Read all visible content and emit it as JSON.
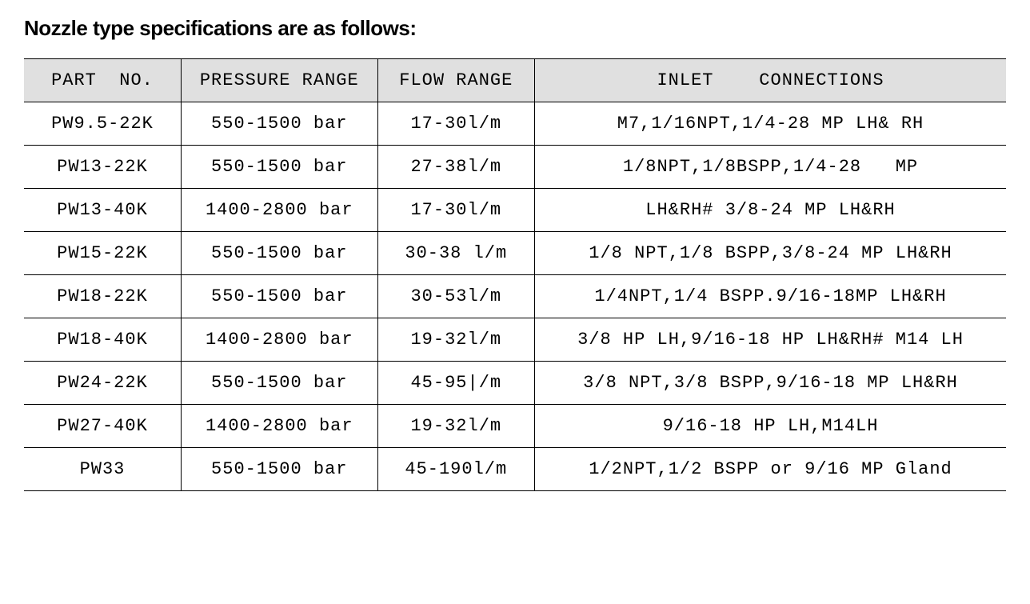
{
  "title": "Nozzle type specifications are as follows:",
  "table": {
    "columns": [
      {
        "key": "part_no",
        "label": "PART  NO.",
        "width": "16%"
      },
      {
        "key": "pressure_range",
        "label": "PRESSURE RANGE",
        "width": "20%"
      },
      {
        "key": "flow_range",
        "label": "FLOW RANGE",
        "width": "16%"
      },
      {
        "key": "inlet_connections",
        "label": "INLET    CONNECTIONS",
        "width": "48%"
      }
    ],
    "rows": [
      {
        "part_no": "PW9.5-22K",
        "pressure_range": "550-1500 bar",
        "flow_range": "17-30l/m",
        "inlet_connections": "M7,1/16NPT,1/4-28 MP LH& RH"
      },
      {
        "part_no": "PW13-22K",
        "pressure_range": "550-1500 bar",
        "flow_range": "27-38l/m",
        "inlet_connections": "1/8NPT,1/8BSPP,1/4-28   MP"
      },
      {
        "part_no": "PW13-40K",
        "pressure_range": "1400-2800 bar",
        "flow_range": "17-30l/m",
        "inlet_connections": "LH&RH# 3/8-24 MP LH&RH"
      },
      {
        "part_no": "PW15-22K",
        "pressure_range": "550-1500 bar",
        "flow_range": "30-38 l/m",
        "inlet_connections": "1/8 NPT,1/8 BSPP,3/8-24 MP LH&RH"
      },
      {
        "part_no": "PW18-22K",
        "pressure_range": "550-1500 bar",
        "flow_range": "30-53l/m",
        "inlet_connections": "1/4NPT,1/4 BSPP.9/16-18MP LH&RH"
      },
      {
        "part_no": "PW18-40K",
        "pressure_range": "1400-2800 bar",
        "flow_range": "19-32l/m",
        "inlet_connections": "3/8 HP LH,9/16-18 HP LH&RH# M14 LH"
      },
      {
        "part_no": "PW24-22K",
        "pressure_range": "550-1500 bar",
        "flow_range": "45-95|/m",
        "inlet_connections": "3/8 NPT,3/8 BSPP,9/16-18 MP LH&RH"
      },
      {
        "part_no": "PW27-40K",
        "pressure_range": "1400-2800 bar",
        "flow_range": "19-32l/m",
        "inlet_connections": "9/16-18 HP LH,M14LH"
      },
      {
        "part_no": "PW33",
        "pressure_range": "550-1500 bar",
        "flow_range": "45-190l/m",
        "inlet_connections": "1/2NPT,1/2 BSPP or 9/16 MP Gland"
      }
    ],
    "styling": {
      "header_bg": "#e0e0e0",
      "header_font_size": 22,
      "cell_font_size": 22,
      "text_color": "#000000",
      "border_color": "#000000",
      "background_color": "#ffffff",
      "font_family": "Courier New",
      "title_font_family": "Arial",
      "title_font_size": 26,
      "title_font_weight": "bold"
    }
  }
}
